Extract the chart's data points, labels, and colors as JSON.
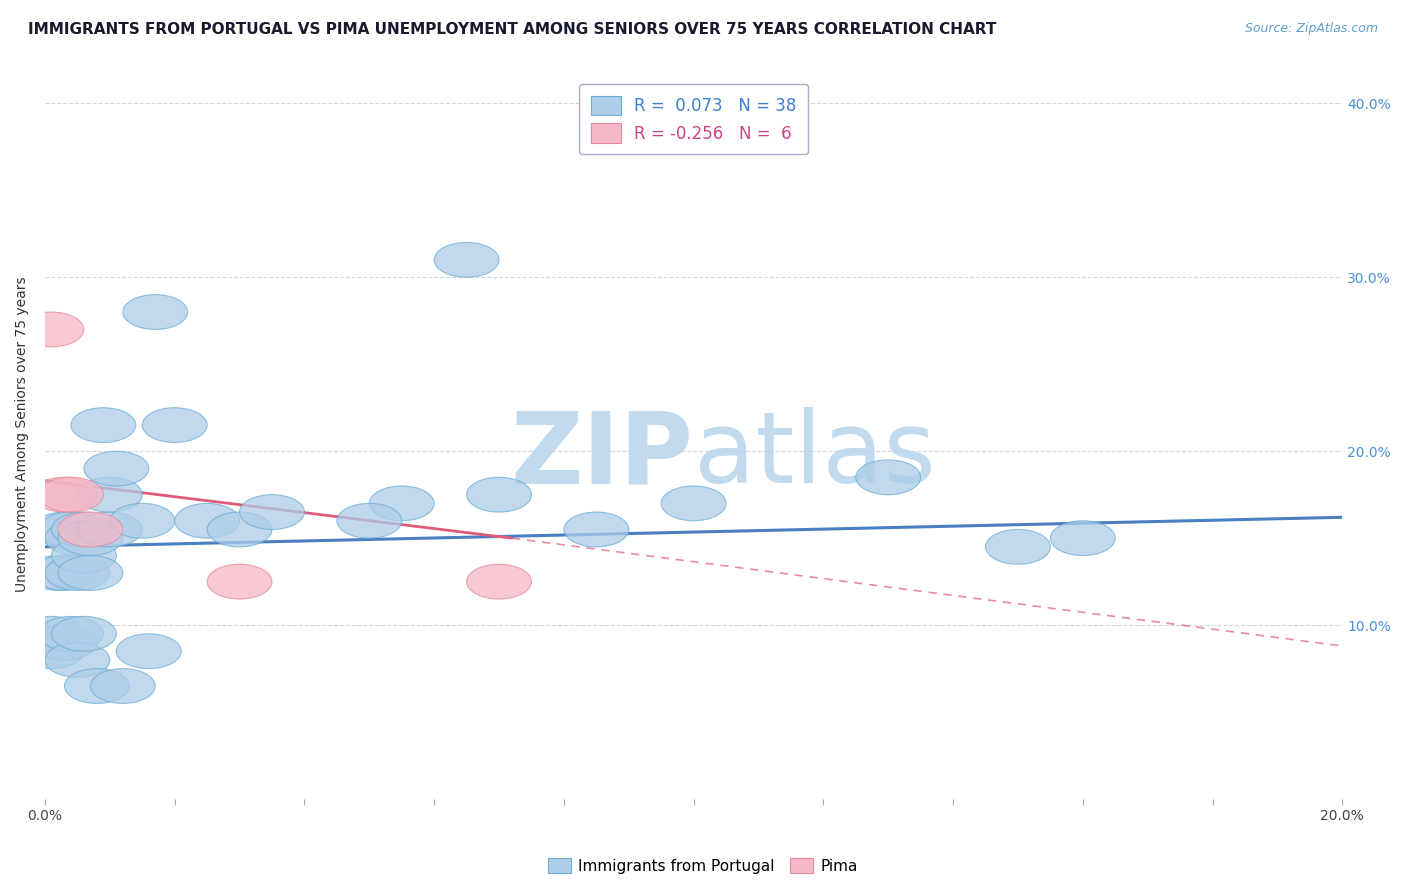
{
  "title": "IMMIGRANTS FROM PORTUGAL VS PIMA UNEMPLOYMENT AMONG SENIORS OVER 75 YEARS CORRELATION CHART",
  "source_text": "Source: ZipAtlas.com",
  "ylabel": "Unemployment Among Seniors over 75 years",
  "xlim": [
    0.0,
    0.2
  ],
  "ylim": [
    0.0,
    0.42
  ],
  "xticks": [
    0.0,
    0.02,
    0.04,
    0.06,
    0.08,
    0.1,
    0.12,
    0.14,
    0.16,
    0.18,
    0.2
  ],
  "ytick_positions": [
    0.0,
    0.1,
    0.2,
    0.3,
    0.4
  ],
  "yticklabels": [
    "",
    "10.0%",
    "20.0%",
    "30.0%",
    "40.0%"
  ],
  "blue_scatter_x": [
    0.001,
    0.001,
    0.002,
    0.003,
    0.003,
    0.003,
    0.004,
    0.004,
    0.005,
    0.005,
    0.005,
    0.006,
    0.006,
    0.006,
    0.007,
    0.007,
    0.008,
    0.009,
    0.01,
    0.01,
    0.011,
    0.012,
    0.015,
    0.016,
    0.017,
    0.02,
    0.025,
    0.03,
    0.035,
    0.055,
    0.065,
    0.07,
    0.085,
    0.1,
    0.13,
    0.15,
    0.16,
    0.05
  ],
  "blue_scatter_y": [
    0.085,
    0.095,
    0.13,
    0.09,
    0.13,
    0.155,
    0.095,
    0.155,
    0.08,
    0.13,
    0.15,
    0.095,
    0.14,
    0.155,
    0.13,
    0.15,
    0.065,
    0.215,
    0.155,
    0.175,
    0.19,
    0.065,
    0.16,
    0.085,
    0.28,
    0.215,
    0.16,
    0.155,
    0.165,
    0.17,
    0.31,
    0.175,
    0.155,
    0.17,
    0.185,
    0.145,
    0.15,
    0.16
  ],
  "pink_scatter_x": [
    0.001,
    0.003,
    0.004,
    0.007,
    0.03,
    0.07
  ],
  "pink_scatter_y": [
    0.27,
    0.175,
    0.175,
    0.155,
    0.125,
    0.125
  ],
  "blue_line_x": [
    0.0,
    0.2
  ],
  "blue_line_y": [
    0.145,
    0.162
  ],
  "pink_solid_line_x": [
    0.0,
    0.072
  ],
  "pink_solid_line_y": [
    0.183,
    0.15
  ],
  "pink_dash_line_x": [
    0.072,
    0.2
  ],
  "pink_dash_line_y": [
    0.15,
    0.088
  ],
  "R_blue": "0.073",
  "N_blue": "38",
  "R_pink": "-0.256",
  "N_pink": "6",
  "blue_color": "#aecde8",
  "blue_edge_color": "#6aaed6",
  "blue_line_color": "#4a7fc1",
  "pink_color": "#f4b8c8",
  "pink_edge_color": "#e8899a",
  "pink_line_color": "#e05a7a",
  "watermark_zip": "ZIP",
  "watermark_atlas": "atlas",
  "watermark_color": "#c8dff0",
  "background_color": "#ffffff",
  "grid_color": "#d0d8e0",
  "title_fontsize": 11,
  "axis_label_fontsize": 10,
  "tick_fontsize": 10,
  "legend_fontsize": 12
}
